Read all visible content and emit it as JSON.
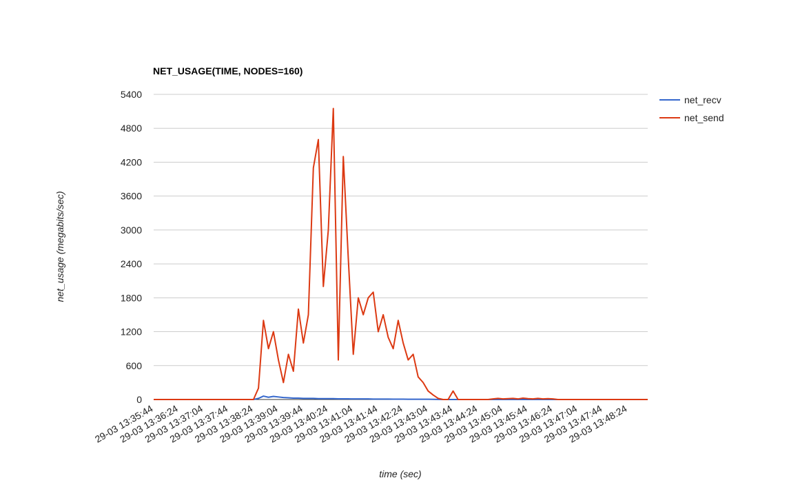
{
  "chart_data": {
    "type": "line",
    "title": "NET_USAGE(TIME, NODES=160)",
    "x_label": "time (sec)",
    "y_label": "net_usage (megabits/sec)",
    "categories": [
      "29-03 13:35:44",
      null,
      null,
      null,
      null,
      "29-03 13:36:24",
      null,
      null,
      null,
      null,
      "29-03 13:37:04",
      null,
      null,
      null,
      null,
      "29-03 13:37:44",
      null,
      null,
      null,
      null,
      "29-03 13:38:24",
      null,
      null,
      null,
      null,
      "29-03 13:39:04",
      null,
      null,
      null,
      null,
      "29-03 13:39:44",
      null,
      null,
      null,
      null,
      "29-03 13:40:24",
      null,
      null,
      null,
      null,
      "29-03 13:41:04",
      null,
      null,
      null,
      null,
      "29-03 13:41:44",
      null,
      null,
      null,
      null,
      "29-03 13:42:24",
      null,
      null,
      null,
      null,
      "29-03 13:43:04",
      null,
      null,
      null,
      null,
      "29-03 13:43:44",
      null,
      null,
      null,
      null,
      "29-03 13:44:24",
      null,
      null,
      null,
      null,
      "29-03 13:45:04",
      null,
      null,
      null,
      null,
      "29-03 13:45:44",
      null,
      null,
      null,
      null,
      "29-03 13:46:24",
      null,
      null,
      null,
      null,
      "29-03 13:47:04",
      null,
      null,
      null,
      null,
      "29-03 13:47:44",
      null,
      null,
      null,
      null,
      "29-03 13:48:24",
      null,
      null,
      null,
      null
    ],
    "series": [
      {
        "name": "net_recv",
        "color": "#3366cc",
        "values": [
          0,
          0,
          0,
          0,
          0,
          0,
          0,
          0,
          0,
          0,
          0,
          0,
          0,
          0,
          0,
          0,
          0,
          0,
          0,
          0,
          0,
          20,
          60,
          40,
          55,
          45,
          35,
          30,
          25,
          25,
          20,
          20,
          20,
          15,
          15,
          15,
          15,
          12,
          12,
          12,
          10,
          10,
          10,
          10,
          8,
          8,
          8,
          8,
          6,
          6,
          6,
          5,
          5,
          5,
          4,
          4,
          3,
          2,
          0,
          0,
          0,
          0,
          0,
          0,
          0,
          0,
          0,
          0,
          0,
          0,
          0,
          0,
          0,
          0,
          0,
          0,
          0,
          0,
          0,
          0,
          0,
          0,
          0,
          0,
          0,
          0,
          0,
          0,
          0,
          0,
          0,
          0,
          0,
          0,
          0,
          0,
          0,
          0,
          0,
          0
        ]
      },
      {
        "name": "net_send",
        "color": "#dc3912",
        "values": [
          0,
          0,
          0,
          0,
          0,
          0,
          0,
          0,
          0,
          0,
          0,
          0,
          0,
          0,
          0,
          0,
          0,
          0,
          0,
          0,
          0,
          200,
          1400,
          900,
          1200,
          700,
          300,
          800,
          500,
          1600,
          1000,
          1500,
          4100,
          4600,
          2000,
          3000,
          5150,
          700,
          4300,
          2500,
          800,
          1800,
          1500,
          1800,
          1900,
          1200,
          1500,
          1100,
          900,
          1400,
          1000,
          700,
          800,
          400,
          300,
          150,
          80,
          20,
          0,
          0,
          150,
          0,
          0,
          0,
          0,
          0,
          0,
          0,
          10,
          20,
          10,
          15,
          20,
          10,
          25,
          15,
          10,
          20,
          10,
          15,
          10,
          0,
          0,
          0,
          0,
          0,
          0,
          0,
          0,
          0,
          0,
          0,
          0,
          0,
          0,
          0,
          0,
          0,
          0,
          0
        ]
      }
    ],
    "ylim": [
      0,
      5400
    ],
    "yticks": [
      0,
      600,
      1200,
      1800,
      2400,
      3000,
      3600,
      4200,
      4800,
      5400
    ],
    "grid": true,
    "legend": "right"
  }
}
